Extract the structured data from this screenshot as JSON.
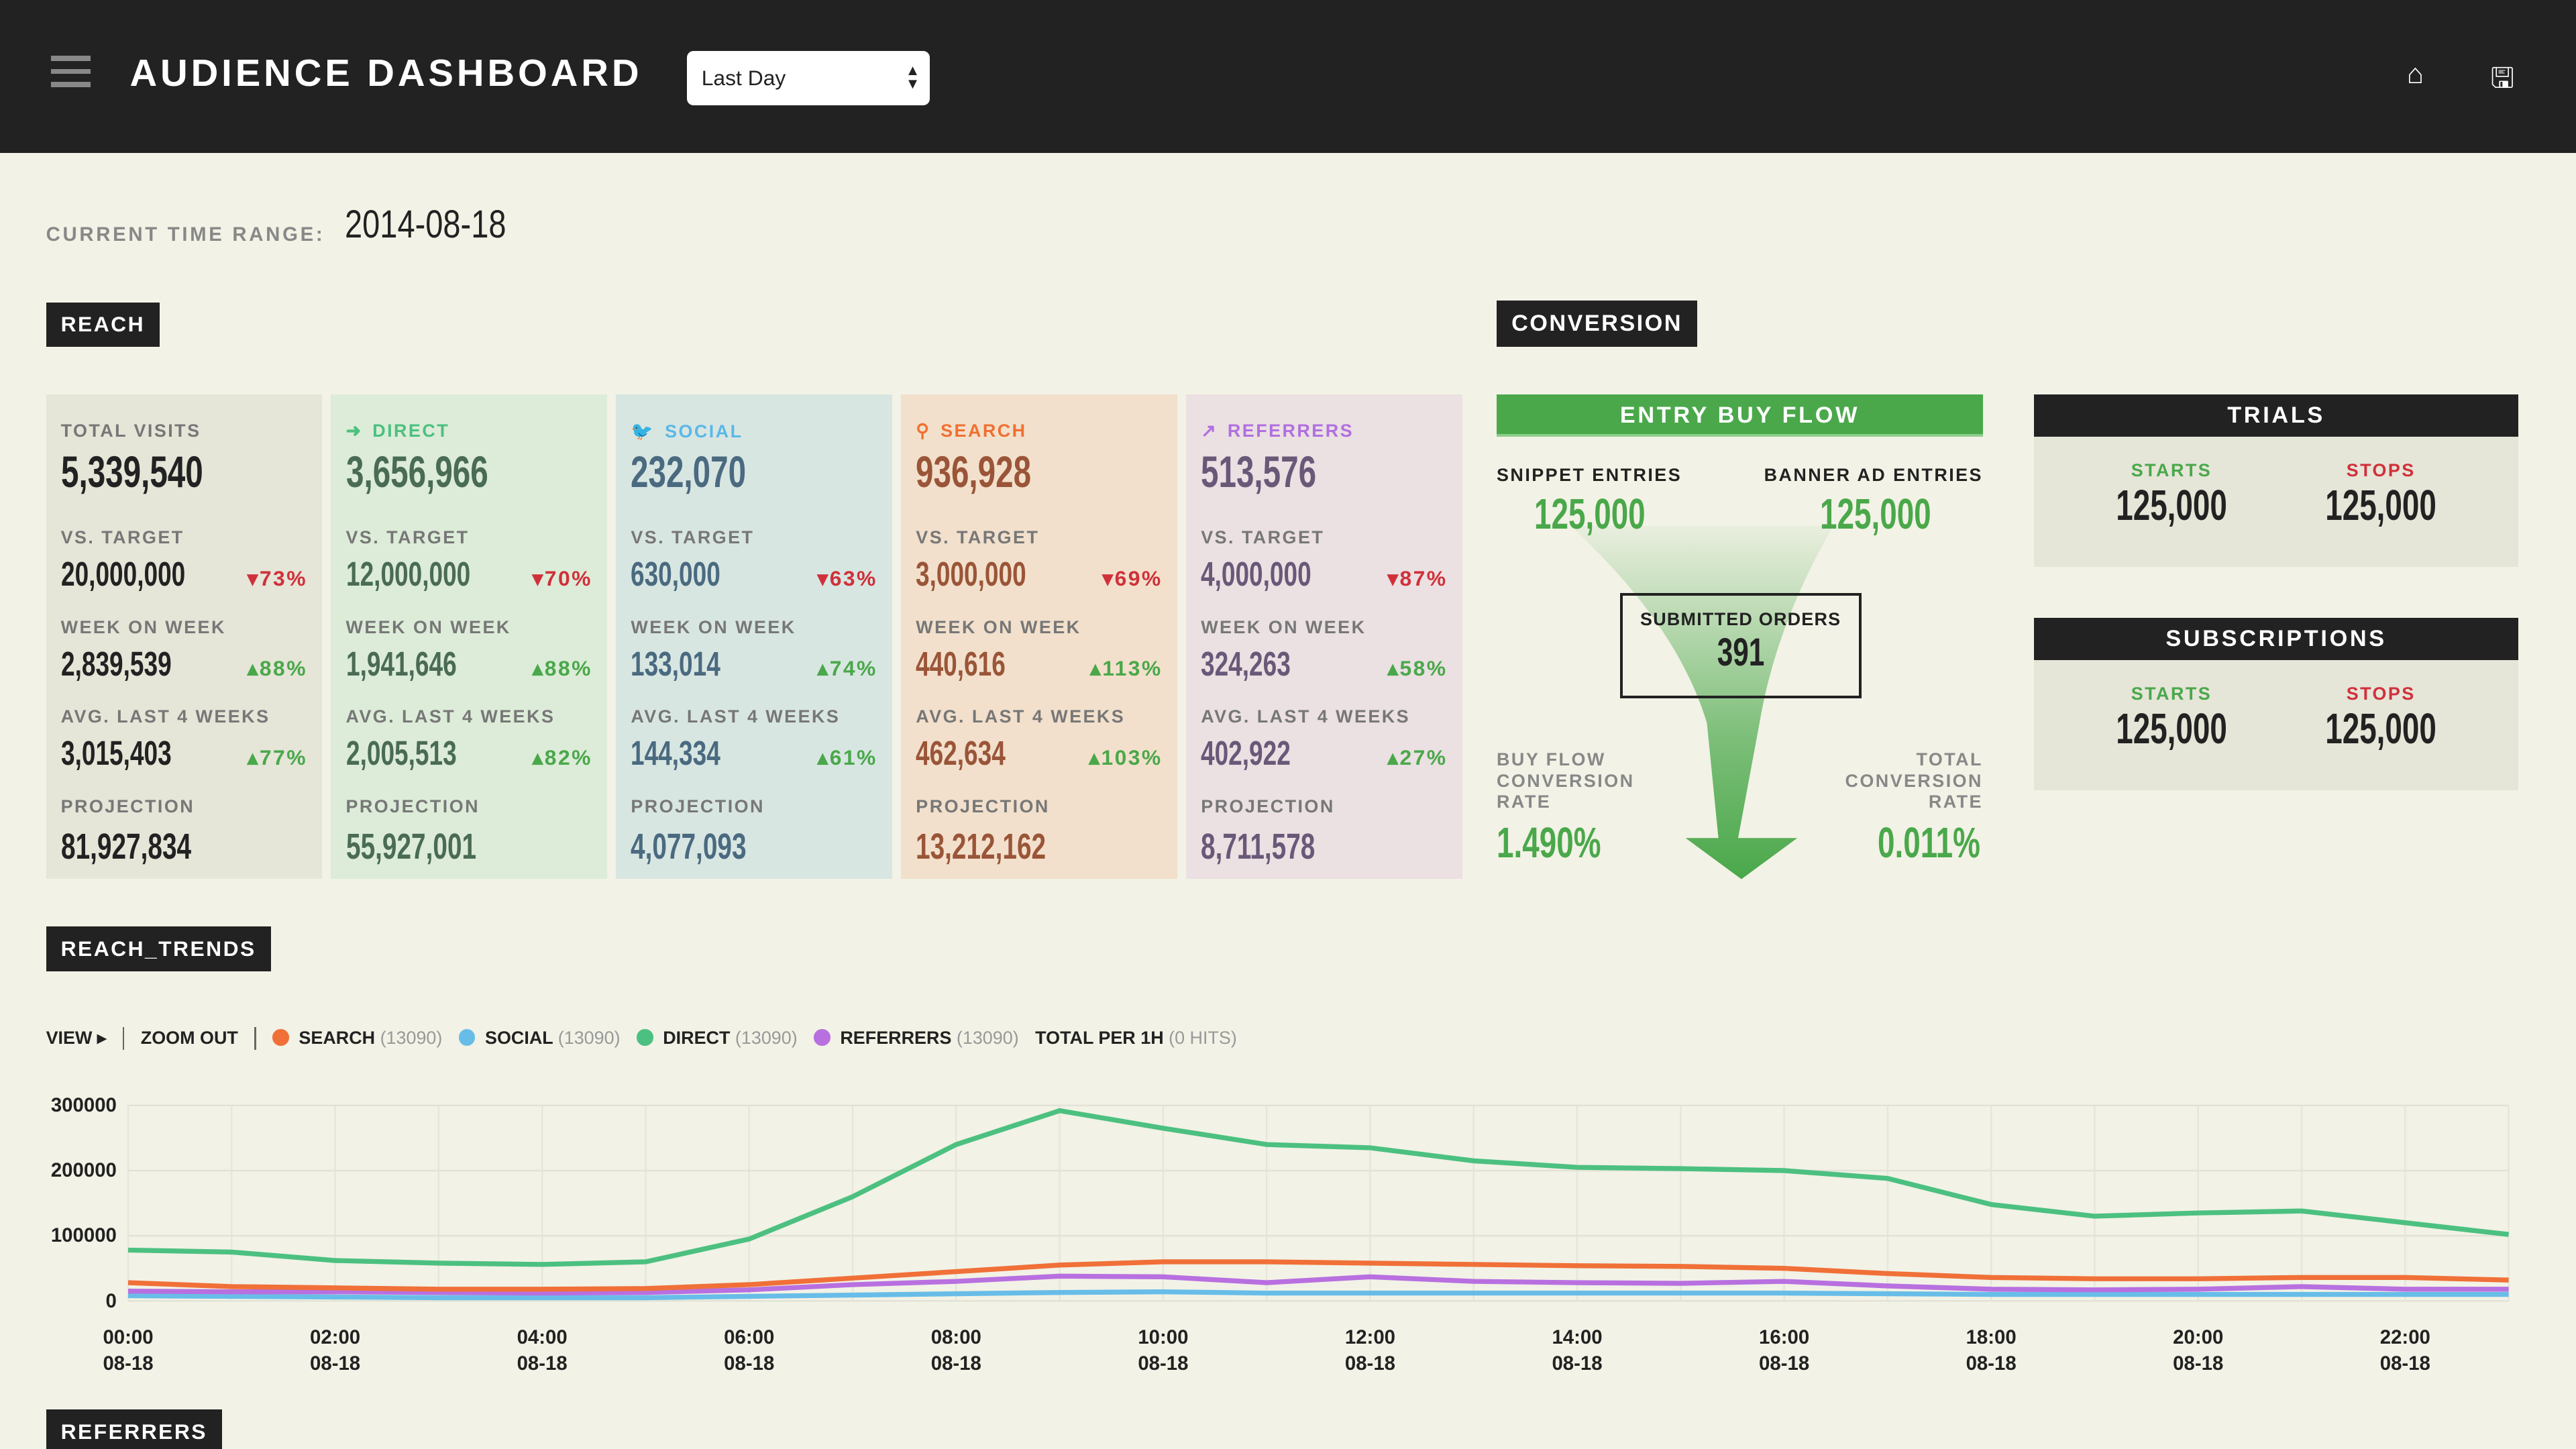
{
  "header": {
    "title": "AUDIENCE DASHBOARD",
    "range_select": "Last Day"
  },
  "time_range": {
    "label": "CURRENT TIME RANGE:",
    "value": "2014-08-18"
  },
  "reach": {
    "title": "REACH",
    "cards": [
      {
        "name": "TOTAL VISITS",
        "icon": "",
        "total": "5,339,540",
        "vs_target": "20,000,000",
        "vs_target_pct": "73%",
        "vs_dir": "down",
        "wow": "2,839,539",
        "wow_pct": "88%",
        "avg4": "3,015,403",
        "avg4_pct": "77%",
        "projection": "81,927,834",
        "bg": "#e5e5d8",
        "color": "#222",
        "labelcolor": "#777"
      },
      {
        "name": "DIRECT",
        "icon": "➜",
        "total": "3,656,966",
        "vs_target": "12,000,000",
        "vs_target_pct": "70%",
        "vs_dir": "down",
        "wow": "1,941,646",
        "wow_pct": "88%",
        "avg4": "2,005,513",
        "avg4_pct": "82%",
        "projection": "55,927,001",
        "bg": "#dcecd8",
        "color": "#4a6b55",
        "labelcolor": "#4cc07f"
      },
      {
        "name": "SOCIAL",
        "icon": "🐦",
        "total": "232,070",
        "vs_target": "630,000",
        "vs_target_pct": "63%",
        "vs_dir": "down",
        "wow": "133,014",
        "wow_pct": "74%",
        "avg4": "144,334",
        "avg4_pct": "61%",
        "projection": "4,077,093",
        "bg": "#d8e6e2",
        "color": "#4a6a80",
        "labelcolor": "#5ab8e8"
      },
      {
        "name": "SEARCH",
        "icon": "⚲",
        "total": "936,928",
        "vs_target": "3,000,000",
        "vs_target_pct": "69%",
        "vs_dir": "down",
        "wow": "440,616",
        "wow_pct": "113%",
        "avg4": "462,634",
        "avg4_pct": "103%",
        "projection": "13,212,162",
        "bg": "#f2e0cc",
        "color": "#9a5538",
        "labelcolor": "#f07030"
      },
      {
        "name": "REFERRERS",
        "icon": "↗",
        "total": "513,576",
        "vs_target": "4,000,000",
        "vs_target_pct": "87%",
        "vs_dir": "down",
        "wow": "324,263",
        "wow_pct": "58%",
        "avg4": "402,922",
        "avg4_pct": "27%",
        "projection": "8,711,578",
        "bg": "#ebe0e2",
        "color": "#6a5878",
        "labelcolor": "#b070e0"
      }
    ],
    "labels": {
      "vs_target": "VS. TARGET",
      "wow": "WEEK ON WEEK",
      "avg4": "AVG. LAST 4 WEEKS",
      "projection": "PROJECTION"
    }
  },
  "conversion": {
    "title": "CONVERSION",
    "entry_buy_flow": "ENTRY BUY FLOW",
    "snippet_label": "SNIPPET ENTRIES",
    "snippet_value": "125,000",
    "banner_label": "BANNER AD ENTRIES",
    "banner_value": "125,000",
    "submitted_label": "SUBMITTED ORDERS",
    "submitted_value": "391",
    "buy_flow_label": "BUY FLOW CONVERSION RATE",
    "buy_flow_value": "1.490%",
    "total_label": "TOTAL CONVERSION RATE",
    "total_value": "0.011%"
  },
  "trials": {
    "title": "TRIALS",
    "starts_label": "STARTS",
    "starts": "125,000",
    "stops_label": "STOPS",
    "stops": "125,000"
  },
  "subscriptions": {
    "title": "SUBSCRIPTIONS",
    "starts_label": "STARTS",
    "starts": "125,000",
    "stops_label": "STOPS",
    "stops": "125,000"
  },
  "reach_trends": {
    "title": "REACH_TRENDS",
    "view": "VIEW ▸",
    "zoom_out": "ZOOM OUT",
    "total_per": "TOTAL PER 1H",
    "total_hits": "(0 HITS)"
  },
  "chart_data": {
    "type": "line",
    "ylim": [
      0,
      300000
    ],
    "yticks": [
      "300000",
      "200000",
      "100000",
      "0"
    ],
    "xticks": [
      "00:00",
      "02:00",
      "04:00",
      "06:00",
      "08:00",
      "10:00",
      "12:00",
      "14:00",
      "16:00",
      "18:00",
      "20:00",
      "22:00"
    ],
    "xdate": "08-18",
    "x": [
      0,
      1,
      2,
      3,
      4,
      5,
      6,
      7,
      8,
      9,
      10,
      11,
      12,
      13,
      14,
      15,
      16,
      17,
      18,
      19,
      20,
      21,
      22,
      23
    ],
    "series": [
      {
        "name": "SEARCH",
        "count": "(13090)",
        "color": "#f07038",
        "values": [
          28000,
          22000,
          20000,
          18000,
          18000,
          19000,
          25000,
          35000,
          45000,
          55000,
          60000,
          60000,
          58000,
          56000,
          54000,
          53000,
          50000,
          42000,
          36000,
          34000,
          34000,
          36000,
          36000,
          32000
        ]
      },
      {
        "name": "SOCIAL",
        "count": "(13090)",
        "color": "#68bde8",
        "values": [
          8000,
          7000,
          6000,
          5000,
          5000,
          5000,
          7000,
          9000,
          11000,
          13000,
          14000,
          12000,
          12000,
          12000,
          12000,
          12000,
          12000,
          11000,
          10000,
          10000,
          10000,
          10000,
          10000,
          10000
        ]
      },
      {
        "name": "DIRECT",
        "count": "(13090)",
        "color": "#4cc080",
        "values": [
          78000,
          75000,
          62000,
          58000,
          56000,
          60000,
          95000,
          160000,
          240000,
          292000,
          265000,
          240000,
          235000,
          215000,
          205000,
          203000,
          200000,
          188000,
          148000,
          130000,
          135000,
          138000,
          120000,
          102000
        ]
      },
      {
        "name": "REFERRERS",
        "count": "(13090)",
        "color": "#b870e0",
        "values": [
          15000,
          14000,
          14000,
          13000,
          12000,
          13000,
          17000,
          25000,
          30000,
          38000,
          37000,
          28000,
          37000,
          30000,
          28000,
          27000,
          30000,
          23000,
          18000,
          17000,
          18000,
          22000,
          18000,
          18000
        ]
      }
    ]
  },
  "referrers_section": {
    "title": "REFERRERS"
  }
}
